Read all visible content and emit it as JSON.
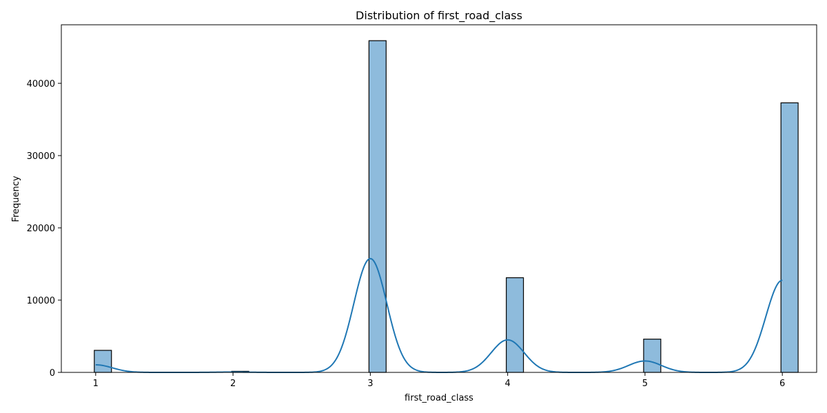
{
  "chart_data": {
    "type": "bar",
    "title": "Distribution of first_road_class",
    "xlabel": "first_road_class",
    "ylabel": "Frequency",
    "xlim": [
      0.75,
      6.25
    ],
    "ylim": [
      0,
      48100
    ],
    "x_ticks": [
      "1",
      "2",
      "3",
      "4",
      "5",
      "6"
    ],
    "y_ticks": [
      "0",
      "10000",
      "20000",
      "30000",
      "40000"
    ],
    "bin_width": 0.125,
    "bins": [
      {
        "x": 1,
        "value": 3050
      },
      {
        "x": 2,
        "value": 150
      },
      {
        "x": 3,
        "value": 45900
      },
      {
        "x": 4,
        "value": 13100
      },
      {
        "x": 5,
        "value": 4600
      },
      {
        "x": 6,
        "value": 37300
      }
    ],
    "kde": {
      "peaks": [
        {
          "x": 1.0,
          "y": 1050,
          "sigma": 0.12
        },
        {
          "x": 2.0,
          "y": 50,
          "sigma": 0.12
        },
        {
          "x": 3.0,
          "y": 15750,
          "sigma": 0.12
        },
        {
          "x": 4.0,
          "y": 4500,
          "sigma": 0.12
        },
        {
          "x": 5.0,
          "y": 1580,
          "sigma": 0.12
        },
        {
          "x": 6.0,
          "y": 12750,
          "sigma": 0.12
        }
      ]
    },
    "colors": {
      "bar_fill": "#8ebbdc",
      "bar_edge": "#000000",
      "kde_line": "#1f77b4"
    },
    "grid": false
  }
}
